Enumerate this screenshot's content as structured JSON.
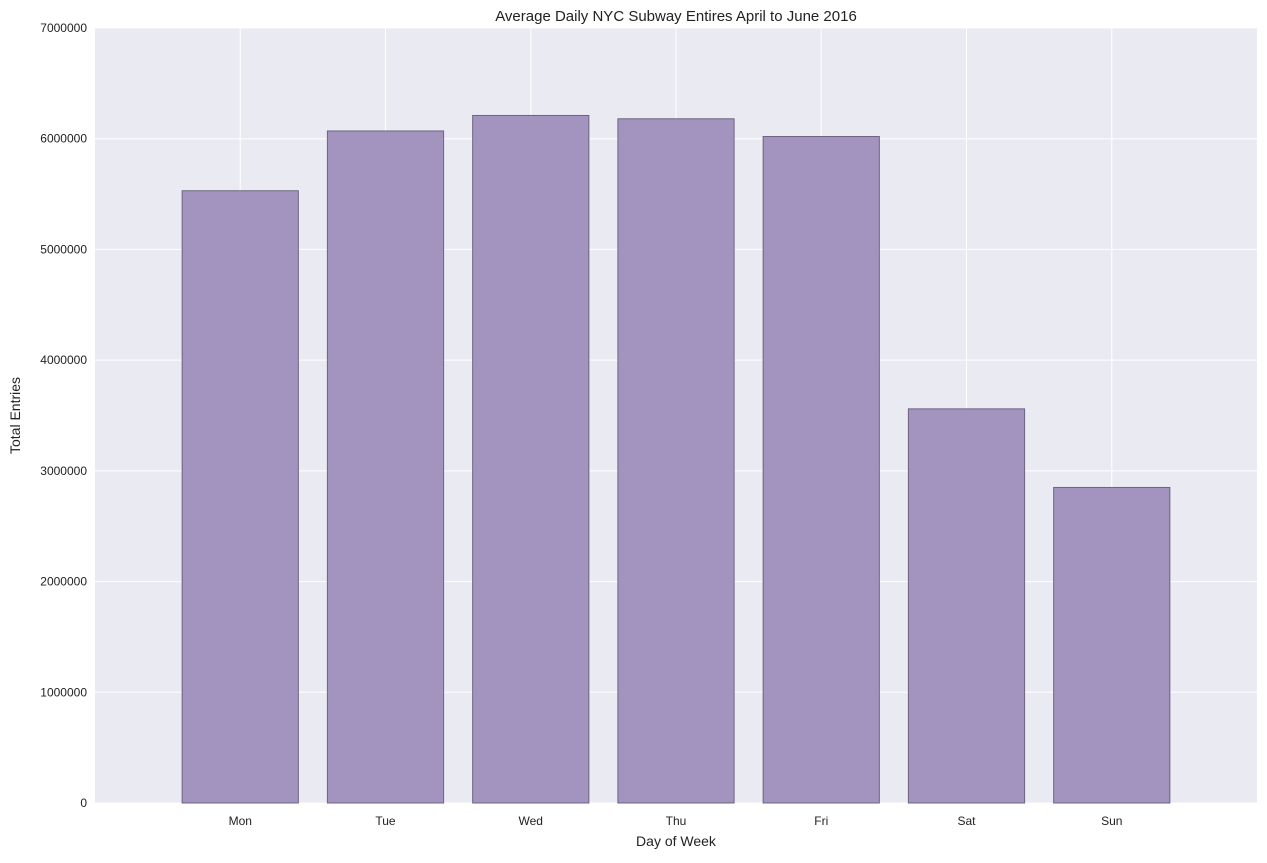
{
  "chart_data": {
    "type": "bar",
    "title": "Average Daily NYC Subway Entires April to June 2016",
    "xlabel": "Day of Week",
    "ylabel": "Total Entries",
    "categories": [
      "Mon",
      "Tue",
      "Wed",
      "Thu",
      "Fri",
      "Sat",
      "Sun"
    ],
    "values": [
      5530000,
      6070000,
      6210000,
      6180000,
      6020000,
      3560000,
      2850000
    ],
    "ylim": [
      0,
      7000000
    ],
    "yticks": [
      "0",
      "1000000",
      "2000000",
      "3000000",
      "4000000",
      "5000000",
      "6000000",
      "7000000"
    ],
    "grid": true,
    "legend": "none",
    "colors": {
      "bar_fill": "#a393bf",
      "bar_edge": "#6e6480",
      "plot_background": "#eaeaf2",
      "grid": "#ffffff"
    }
  }
}
